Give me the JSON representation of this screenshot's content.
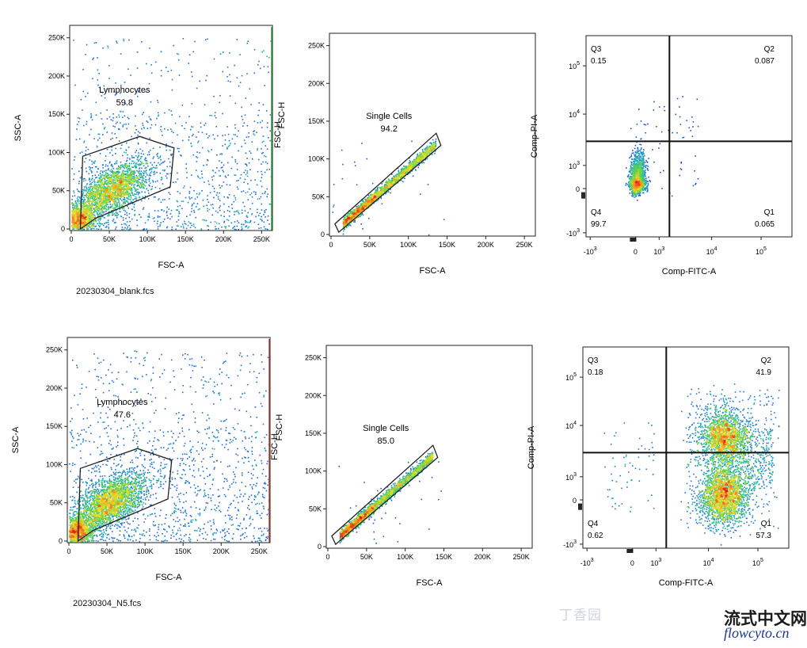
{
  "chart_data": [
    {
      "type": "scatter",
      "row": 0,
      "kind": "lymph",
      "xlabel": "FSC-A",
      "ylabel": "SSC-A",
      "right_label": "FSC-H",
      "xlim": [
        0,
        262144
      ],
      "ylim": [
        0,
        262144
      ],
      "x_ticks": [
        "0",
        "50K",
        "100K",
        "150K",
        "200K",
        "250K"
      ],
      "y_ticks": [
        "0",
        "50K",
        "100K",
        "150K",
        "200K",
        "250K"
      ],
      "gate": {
        "name": "Lymphocytes",
        "value": "59.8",
        "polygon": [
          [
            12000,
            0
          ],
          [
            15000,
            95000
          ],
          [
            90000,
            121000
          ],
          [
            135000,
            106000
          ],
          [
            130000,
            55000
          ],
          [
            32000,
            14000
          ]
        ]
      }
    },
    {
      "type": "scatter",
      "row": 0,
      "kind": "singlet",
      "xlabel": "FSC-A",
      "ylabel": "FSC-H",
      "xlim": [
        0,
        262144
      ],
      "ylim": [
        0,
        262144
      ],
      "x_ticks": [
        "0",
        "50K",
        "100K",
        "150K",
        "200K",
        "250K"
      ],
      "y_ticks": [
        "0",
        "50K",
        "100K",
        "150K",
        "200K",
        "250K"
      ],
      "gate": {
        "name": "Single Cells",
        "value": "94.2",
        "polygon": [
          [
            5000,
            14000
          ],
          [
            10000,
            3000
          ],
          [
            142000,
            118000
          ],
          [
            136000,
            134000
          ]
        ]
      }
    },
    {
      "type": "scatter",
      "row": 0,
      "kind": "quad",
      "xlabel": "Comp-FITC-A",
      "ylabel": "Comp-PI-A",
      "x_ticks": [
        "-10^3",
        "0",
        "10^3",
        "10^4",
        "10^5"
      ],
      "y_ticks": [
        "-10^3",
        "0",
        "10^3",
        "10^4",
        "10^5"
      ],
      "quadrants": [
        {
          "name": "Q3",
          "value": "0.15"
        },
        {
          "name": "Q2",
          "value": "0.087"
        },
        {
          "name": "Q4",
          "value": "99.7"
        },
        {
          "name": "Q1",
          "value": "0.065"
        }
      ]
    },
    {
      "type": "scatter",
      "row": 1,
      "kind": "lymph",
      "xlabel": "FSC-A",
      "ylabel": "SSC-A",
      "right_label": "FSC-H",
      "xlim": [
        0,
        262144
      ],
      "ylim": [
        0,
        262144
      ],
      "x_ticks": [
        "0",
        "50K",
        "100K",
        "150K",
        "200K",
        "250K"
      ],
      "y_ticks": [
        "0",
        "50K",
        "100K",
        "150K",
        "200K",
        "250K"
      ],
      "gate": {
        "name": "Lymphocytes",
        "value": "47.6",
        "polygon": [
          [
            12000,
            0
          ],
          [
            15000,
            95000
          ],
          [
            90000,
            121000
          ],
          [
            135000,
            106000
          ],
          [
            130000,
            55000
          ],
          [
            32000,
            14000
          ]
        ]
      }
    },
    {
      "type": "scatter",
      "row": 1,
      "kind": "singlet",
      "xlabel": "FSC-A",
      "ylabel": "FSC-H",
      "xlim": [
        0,
        262144
      ],
      "ylim": [
        0,
        262144
      ],
      "x_ticks": [
        "0",
        "50K",
        "100K",
        "150K",
        "200K",
        "250K"
      ],
      "y_ticks": [
        "0",
        "50K",
        "100K",
        "150K",
        "200K",
        "250K"
      ],
      "gate": {
        "name": "Single Cells",
        "value": "85.0",
        "polygon": [
          [
            5000,
            14000
          ],
          [
            10000,
            3000
          ],
          [
            142000,
            118000
          ],
          [
            136000,
            134000
          ]
        ]
      }
    },
    {
      "type": "scatter",
      "row": 1,
      "kind": "quad",
      "xlabel": "Comp-FITC-A",
      "ylabel": "Comp-PI-A",
      "x_ticks": [
        "-10^3",
        "0",
        "10^3",
        "10^4",
        "10^5"
      ],
      "y_ticks": [
        "-10^3",
        "0",
        "10^3",
        "10^4",
        "10^5"
      ],
      "quadrants": [
        {
          "name": "Q3",
          "value": "0.18"
        },
        {
          "name": "Q2",
          "value": "41.9"
        },
        {
          "name": "Q4",
          "value": "0.62"
        },
        {
          "name": "Q1",
          "value": "57.3"
        }
      ]
    }
  ],
  "files": [
    "20230304_blank.fcs",
    "20230304_N5.fcs"
  ],
  "watermarks": {
    "dingxiang": "丁香园",
    "site_cn": "流式中文网",
    "site_url": "flowcyto.cn"
  }
}
